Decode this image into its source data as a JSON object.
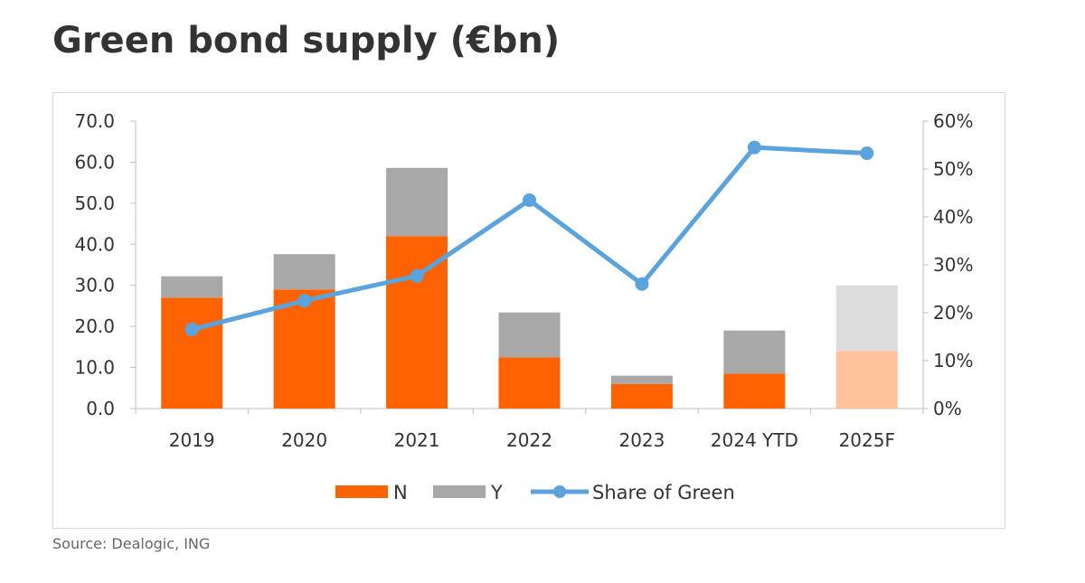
{
  "title": "Green bond supply (€bn)",
  "source": "Source: Dealogic, ING",
  "chart_data": {
    "type": "bar",
    "stacked": true,
    "categories": [
      "2019",
      "2020",
      "2021",
      "2022",
      "2023",
      "2024 YTD",
      "2025F"
    ],
    "series": [
      {
        "name": "N",
        "type": "bar",
        "axis": "left",
        "values": [
          27.0,
          29.0,
          42.0,
          12.5,
          6.0,
          8.5,
          14.0
        ],
        "color": "#ff6200",
        "forecast_color": "#ffc29a"
      },
      {
        "name": "Y",
        "type": "bar",
        "axis": "left",
        "values": [
          5.2,
          8.6,
          16.6,
          10.9,
          2.0,
          10.5,
          16.0
        ],
        "color": "#a8a8a8",
        "forecast_color": "#dcdcdc"
      },
      {
        "name": "Share of Green",
        "type": "line",
        "axis": "right",
        "values": [
          0.165,
          0.225,
          0.277,
          0.435,
          0.26,
          0.545,
          0.533
        ],
        "color": "#5ba3dc"
      }
    ],
    "forecast_category": "2025F",
    "ylim": [
      0,
      70
    ],
    "yticks": [
      "70.0",
      "60.0",
      "50.0",
      "40.0",
      "30.0",
      "20.0",
      "10.0",
      "0.0"
    ],
    "ylim_right": [
      0,
      0.6
    ],
    "yticks_right": [
      "60%",
      "50%",
      "40%",
      "30%",
      "20%",
      "10%",
      "0%"
    ],
    "legend_position": "bottom",
    "grid": false
  }
}
